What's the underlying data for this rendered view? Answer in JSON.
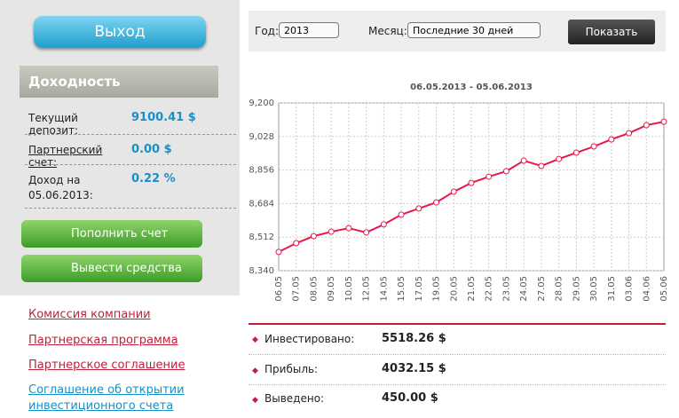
{
  "sidebar": {
    "exit_button": "Выход",
    "section_title": "Доходность",
    "rows": [
      {
        "label": "Текущий депозит:",
        "value": "9100.41 $"
      },
      {
        "label": "Партнерский счет:",
        "value": "0.00 $"
      },
      {
        "label": "Доход на 05.06.2013:",
        "value": "0.22 %"
      }
    ],
    "buttons": [
      "Пополнить счет",
      "Вывести средства"
    ],
    "links": [
      "Комиссия компании",
      "Партнерская программа",
      "Партнерское соглашение",
      "Соглашение об открытии инвестиционного счета"
    ]
  },
  "toolbar": {
    "year_label": "Год:",
    "year": "2013",
    "month_label": "Месяц:",
    "month": "Последние 30 дней",
    "submit": "Показать"
  },
  "chart_data": {
    "type": "line",
    "title": "06.05.2013 - 05.06.2013",
    "categories": [
      "06.05",
      "07.05",
      "08.05",
      "09.05",
      "10.05",
      "12.05",
      "14.05",
      "15.05",
      "17.05",
      "19.05",
      "20.05",
      "21.05",
      "22.05",
      "23.05",
      "24.05",
      "27.05",
      "28.05",
      "29.05",
      "30.05",
      "31.05",
      "03.06",
      "04.06",
      "05.06"
    ],
    "values": [
      8436,
      8481,
      8517,
      8540,
      8558,
      8536,
      8577,
      8627,
      8659,
      8690,
      8745,
      8790,
      8822,
      8850,
      8904,
      8877,
      8913,
      8945,
      8977,
      9013,
      9045,
      9086,
      9104
    ],
    "color": "#e8174a",
    "ylim": [
      8340,
      9200
    ],
    "yticks": [
      {
        "value": 8340,
        "label": "8,340"
      },
      {
        "value": 8512,
        "label": "8,512"
      },
      {
        "value": 8684,
        "label": "8,684"
      },
      {
        "value": 8856,
        "label": "8,856"
      },
      {
        "value": 9028,
        "label": "9,028"
      },
      {
        "value": 9200,
        "label": "9,200"
      }
    ],
    "grid": true
  },
  "stats": [
    {
      "label": "Инвестировано:",
      "value": "5518.26 $"
    },
    {
      "label": "Прибыль:",
      "value": "4032.15 $"
    },
    {
      "label": "Выведено:",
      "value": "450.00 $"
    }
  ]
}
